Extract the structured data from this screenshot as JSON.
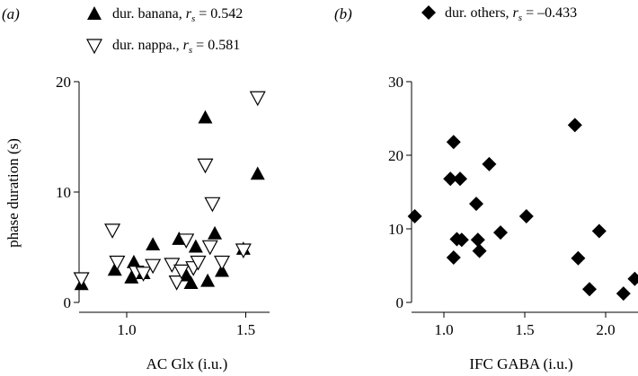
{
  "chart_data": [
    {
      "type": "scatter",
      "panel_label": "(a)",
      "xlabel": "AC Glx (i.u.)",
      "ylabel": "phase duration (s)",
      "xlim": [
        0.8,
        1.6
      ],
      "ylim": [
        0,
        20
      ],
      "xticks": [
        "1.0",
        "1.5"
      ],
      "xtick_values": [
        1.0,
        1.5
      ],
      "yticks": [
        "0",
        "10",
        "20"
      ],
      "ytick_values": [
        0,
        10,
        20
      ],
      "series": [
        {
          "name": "dur. banana, ",
          "stat_symbol": "r",
          "stat_sub": "s",
          "stat_value": " = 0.542",
          "marker": "triangle-up-filled",
          "x": [
            0.81,
            0.95,
            1.02,
            1.03,
            1.07,
            1.11,
            1.22,
            1.25,
            1.27,
            1.29,
            1.33,
            1.34,
            1.37,
            1.4,
            1.49,
            1.55
          ],
          "y": [
            1.7,
            3.0,
            2.3,
            3.7,
            2.7,
            5.3,
            5.8,
            2.5,
            1.8,
            5.1,
            16.8,
            2.0,
            6.3,
            2.9,
            4.9,
            11.7
          ]
        },
        {
          "name": "dur. nappa., ",
          "stat_symbol": "r",
          "stat_sub": "s",
          "stat_value": " = 0.581",
          "marker": "triangle-down-open",
          "x": [
            0.81,
            0.94,
            0.96,
            1.04,
            1.07,
            1.11,
            1.19,
            1.21,
            1.23,
            1.25,
            1.28,
            1.3,
            1.33,
            1.35,
            1.36,
            1.4,
            1.49,
            1.55
          ],
          "y": [
            2.1,
            6.5,
            3.6,
            2.7,
            2.6,
            3.3,
            3.4,
            1.8,
            2.8,
            5.6,
            3.1,
            3.6,
            12.4,
            5.0,
            8.9,
            3.6,
            4.7,
            18.5
          ]
        }
      ]
    },
    {
      "type": "scatter",
      "panel_label": "(b)",
      "xlabel": "IFC GABA (i.u.)",
      "ylabel": "",
      "xlim": [
        0.8,
        2.2
      ],
      "ylim": [
        0,
        30
      ],
      "xticks": [
        "1.0",
        "1.5",
        "2.0"
      ],
      "xtick_values": [
        1.0,
        1.5,
        2.0
      ],
      "yticks": [
        "0",
        "10",
        "20",
        "30"
      ],
      "ytick_values": [
        0,
        10,
        20,
        30
      ],
      "series": [
        {
          "name": "dur. others, ",
          "stat_symbol": "r",
          "stat_sub": "s",
          "stat_value": " = –0.433",
          "marker": "diamond-filled",
          "x": [
            0.82,
            1.04,
            1.06,
            1.06,
            1.08,
            1.1,
            1.11,
            1.2,
            1.21,
            1.22,
            1.28,
            1.35,
            1.51,
            1.81,
            1.83,
            1.9,
            1.96,
            2.11,
            2.18
          ],
          "y": [
            11.7,
            16.8,
            21.8,
            6.1,
            8.6,
            16.8,
            8.5,
            13.4,
            8.5,
            7.0,
            18.8,
            9.5,
            11.7,
            24.1,
            6.0,
            1.8,
            9.7,
            1.2,
            3.2
          ]
        }
      ]
    }
  ]
}
